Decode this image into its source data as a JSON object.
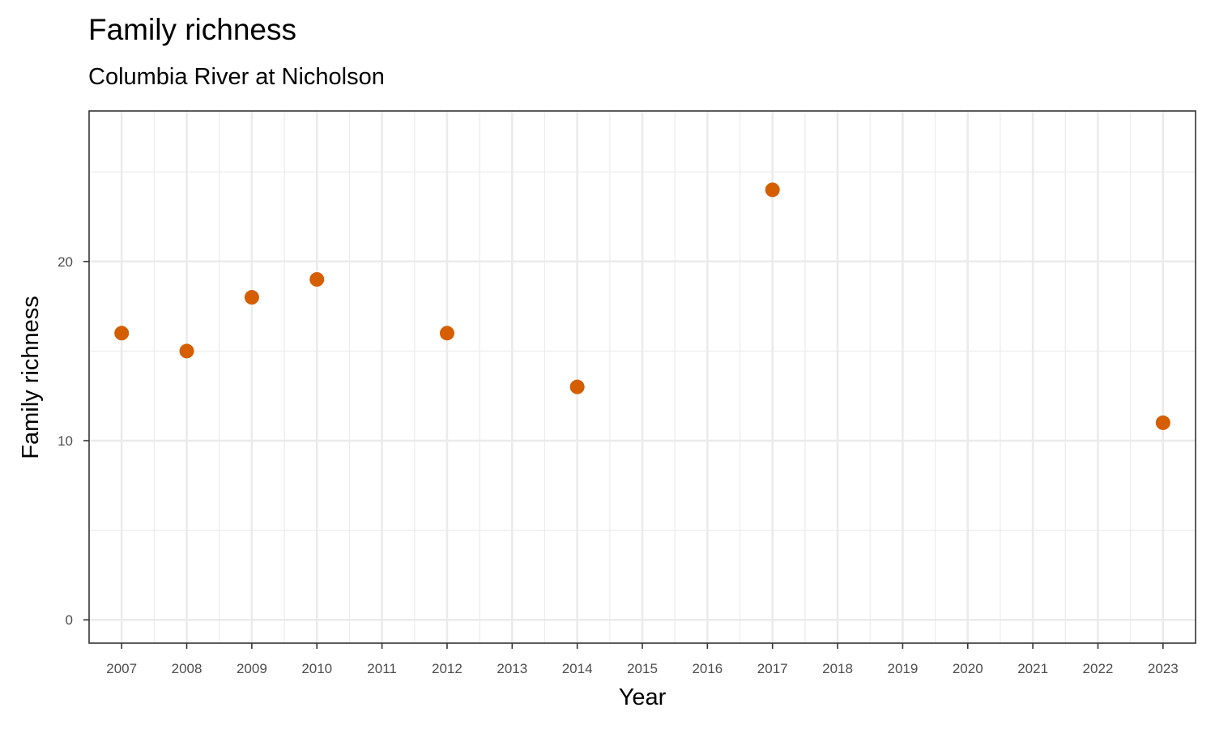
{
  "chart_data": {
    "type": "scatter",
    "title": "Family richness",
    "subtitle": "Columbia River at Nicholson",
    "xlabel": "Year",
    "ylabel": "Family richness",
    "x_ticks": [
      "2007",
      "2008",
      "2009",
      "2010",
      "2011",
      "2012",
      "2013",
      "2014",
      "2015",
      "2016",
      "2017",
      "2018",
      "2019",
      "2020",
      "2021",
      "2022",
      "2023"
    ],
    "y_ticks": [
      0,
      10,
      20
    ],
    "xlim": [
      2006.5,
      2023.5
    ],
    "ylim": [
      -1.3,
      28.4
    ],
    "grid": true,
    "point_color": "#D55E00",
    "points": [
      {
        "x": 2007,
        "y": 16
      },
      {
        "x": 2008,
        "y": 15
      },
      {
        "x": 2009,
        "y": 18
      },
      {
        "x": 2010,
        "y": 19
      },
      {
        "x": 2012,
        "y": 16
      },
      {
        "x": 2014,
        "y": 13
      },
      {
        "x": 2017,
        "y": 24
      },
      {
        "x": 2023,
        "y": 11
      }
    ]
  }
}
